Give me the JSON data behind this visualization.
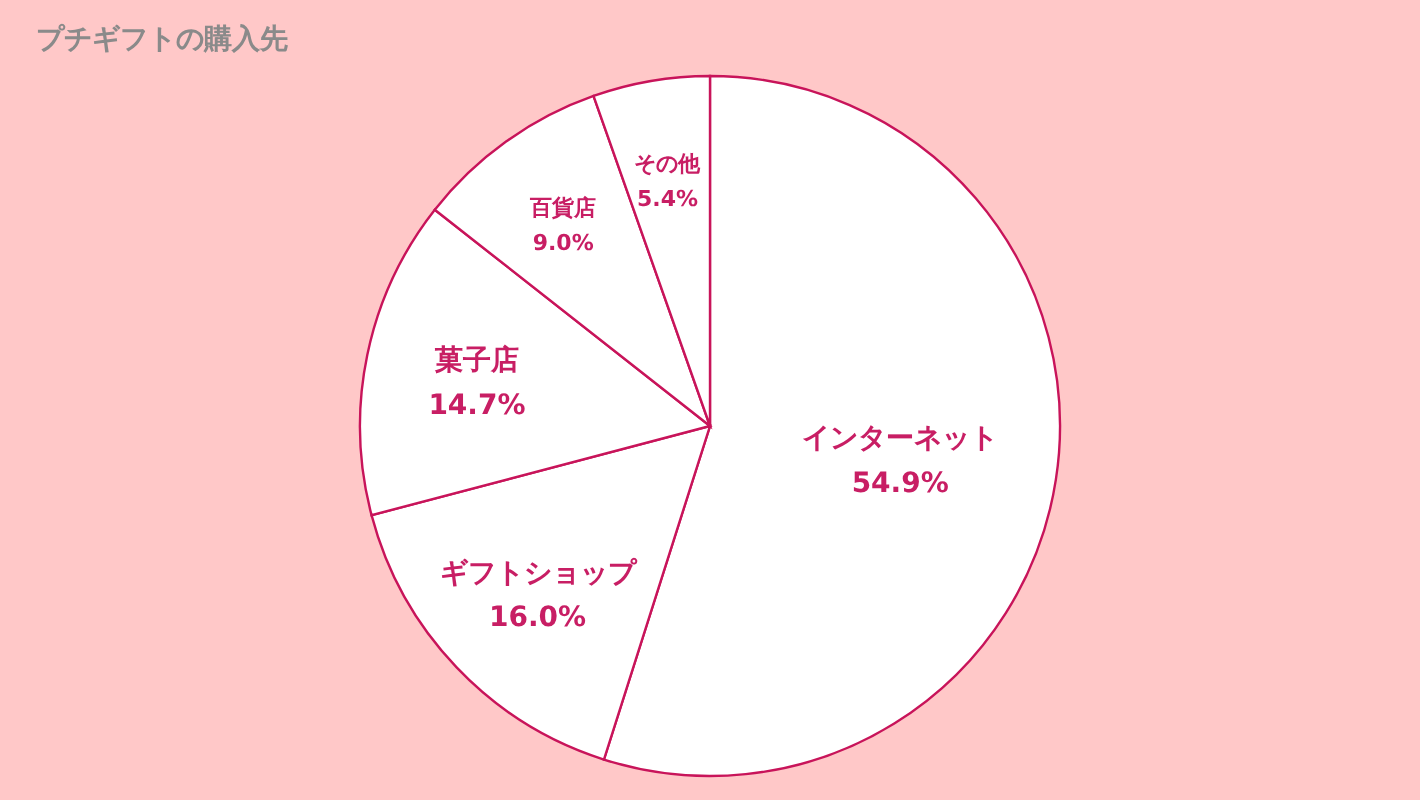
{
  "chart_data": {
    "type": "pie",
    "title": "プチギフトの購入先",
    "categories": [
      "インターネット",
      "ギフトショップ",
      "菓子店",
      "百貨店",
      "その他"
    ],
    "values": [
      54.9,
      16.0,
      14.7,
      9.0,
      5.4
    ],
    "value_labels": [
      "54.9%",
      "16.0%",
      "14.7%",
      "9.0%",
      "5.4%"
    ],
    "colors": [
      "#ffffff",
      "#ffffff",
      "#ffffff",
      "#ffffff",
      "#ffffff"
    ]
  }
}
